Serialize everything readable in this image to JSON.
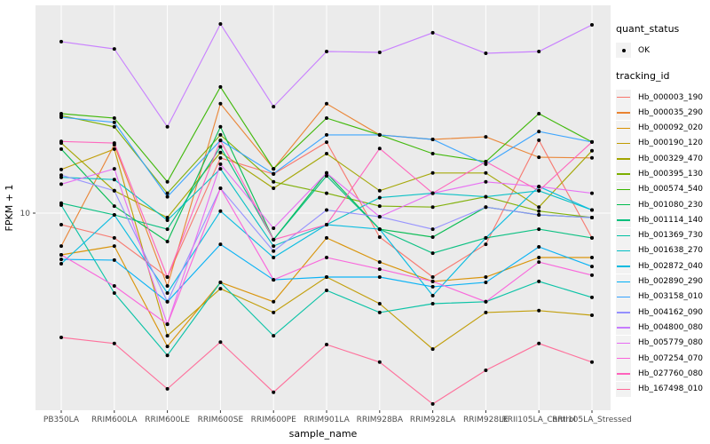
{
  "figure": {
    "background": "#ffffff",
    "panel_background": "#ebebeb",
    "gridline_color": "#ffffff",
    "tick_color": "#333333",
    "tick_label_color": "#4d4d4d",
    "axis_title_color": "#000000"
  },
  "legend": {
    "quant_status_title": "quant_status",
    "quant_status_items": [
      {
        "label": "OK",
        "marker": "point-black"
      }
    ],
    "tracking_title": "tracking_id"
  },
  "chart_data": {
    "type": "line",
    "title": "",
    "xlabel": "sample_name",
    "ylabel": "FPKM + 1",
    "y_scale": "log10",
    "y_ticks": [
      10
    ],
    "grid": "major-on",
    "legend_position": "right",
    "point_marker": "black-dot",
    "categories": [
      "PB350LA",
      "RRIM600LA",
      "RRIM600LE",
      "RRIM600SE",
      "RRIM600PE",
      "RRIM901LA",
      "RRIM928BA",
      "RRIM928LA",
      "RRIM928LE",
      "RRII105LA_Control",
      "RRII105LA_Stressed"
    ],
    "series": [
      {
        "name": "Hb_000003_190",
        "color": "#F8766D",
        "values": [
          8.95,
          7.88,
          5.41,
          16.98,
          14.55,
          19.77,
          7.94,
          5.41,
          7.41,
          20.14,
          7.88
        ]
      },
      {
        "name": "Hb_000035_290",
        "color": "#EA8331",
        "values": [
          7.29,
          19.28,
          4.97,
          28.6,
          15.3,
          28.6,
          21.2,
          20.3,
          20.8,
          17.1,
          17.0
        ]
      },
      {
        "name": "Hb_000092_020",
        "color": "#D89000",
        "values": [
          6.7,
          7.29,
          2.78,
          5.14,
          4.27,
          7.88,
          6.25,
          5.19,
          5.41,
          6.53,
          6.53
        ]
      },
      {
        "name": "Hb_000190_120",
        "color": "#C09B00",
        "values": [
          15.2,
          18.5,
          3.08,
          4.84,
          3.85,
          5.41,
          4.19,
          2.71,
          3.85,
          3.92,
          3.75
        ]
      },
      {
        "name": "Hb_000329_470",
        "color": "#A3A500",
        "values": [
          19.6,
          12.4,
          9.58,
          17.9,
          12.7,
          17.7,
          12.4,
          14.7,
          14.7,
          10.6,
          18.2
        ]
      },
      {
        "name": "Hb_000395_130",
        "color": "#7CAE00",
        "values": [
          25.5,
          22.9,
          12.1,
          21.2,
          13.5,
          12.1,
          10.7,
          10.6,
          11.7,
          10.2,
          9.58
        ]
      },
      {
        "name": "Hb_000574_540",
        "color": "#39B600",
        "values": [
          26.0,
          24.9,
          13.5,
          33.6,
          15.3,
          24.9,
          21.2,
          17.7,
          16.4,
          26.0,
          19.8
        ]
      },
      {
        "name": "Hb_001080_230",
        "color": "#00BB4E",
        "values": [
          18.5,
          10.7,
          7.61,
          22.9,
          7.75,
          14.7,
          8.57,
          7.94,
          10.6,
          9.83,
          9.58
        ]
      },
      {
        "name": "Hb_001114_140",
        "color": "#00BF7D",
        "values": [
          11.0,
          9.83,
          8.57,
          18.9,
          7.75,
          14.3,
          8.57,
          6.81,
          7.88,
          8.57,
          7.88
        ]
      },
      {
        "name": "Hb_001369_730",
        "color": "#00C1A3",
        "values": [
          10.8,
          4.64,
          2.55,
          5.14,
          3.08,
          4.76,
          3.85,
          4.19,
          4.27,
          5.19,
          4.45
        ]
      },
      {
        "name": "Hb_001638_270",
        "color": "#00BFC4",
        "values": [
          14.1,
          13.8,
          9.34,
          15.3,
          7.29,
          8.95,
          11.6,
          12.1,
          11.7,
          12.4,
          10.3
        ]
      },
      {
        "name": "Hb_002872_040",
        "color": "#00BAE0",
        "values": [
          6.15,
          9.83,
          4.64,
          10.2,
          6.53,
          8.95,
          8.57,
          4.53,
          7.88,
          12.9,
          10.3
        ]
      },
      {
        "name": "Hb_002890_290",
        "color": "#00B0F6",
        "values": [
          6.41,
          6.37,
          4.27,
          7.41,
          5.27,
          5.41,
          5.41,
          4.93,
          5.14,
          7.23,
          5.99
        ]
      },
      {
        "name": "Hb_003158_010",
        "color": "#35A2FF",
        "values": [
          25.1,
          23.9,
          11.7,
          20.1,
          14.6,
          21.2,
          21.2,
          20.3,
          16.0,
          21.9,
          19.8
        ]
      },
      {
        "name": "Hb_004162_090",
        "color": "#9590FF",
        "values": [
          14.4,
          12.4,
          4.27,
          12.7,
          6.94,
          10.3,
          9.66,
          8.57,
          10.6,
          9.83,
          9.58
        ]
      },
      {
        "name": "Hb_004800_080",
        "color": "#C77CFF",
        "values": [
          51.9,
          48.4,
          22.9,
          61.5,
          27.8,
          47.2,
          46.8,
          56.5,
          46.4,
          47.2,
          61.0
        ]
      },
      {
        "name": "Hb_005779_080",
        "color": "#E76BF3",
        "values": [
          13.2,
          15.3,
          3.44,
          16.0,
          8.65,
          14.7,
          9.66,
          12.1,
          13.5,
          12.9,
          12.1
        ]
      },
      {
        "name": "Hb_007254_070",
        "color": "#FA62DB",
        "values": [
          6.7,
          4.97,
          3.44,
          12.7,
          5.27,
          6.53,
          5.84,
          5.19,
          4.27,
          6.25,
          5.51
        ]
      },
      {
        "name": "Hb_027760_080",
        "color": "#FF62BC",
        "values": [
          19.9,
          19.6,
          5.41,
          20.1,
          7.75,
          8.95,
          18.6,
          12.1,
          16.4,
          12.4,
          19.8
        ]
      },
      {
        "name": "Hb_167498_010",
        "color": "#FF6A98",
        "values": [
          3.03,
          2.86,
          1.85,
          2.9,
          1.79,
          2.83,
          2.39,
          1.6,
          2.21,
          2.86,
          2.39
        ]
      }
    ]
  }
}
